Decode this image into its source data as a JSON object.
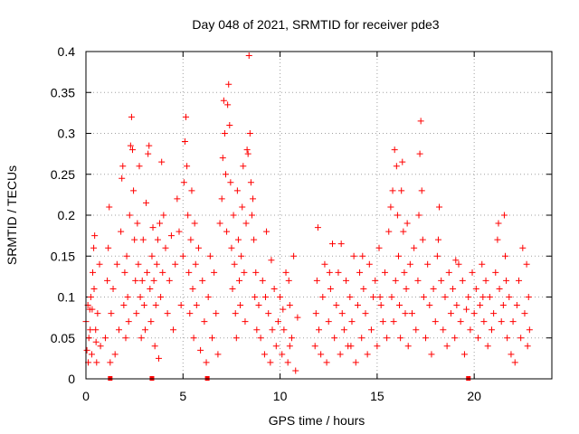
{
  "chart_data": {
    "type": "scatter",
    "title": "Day 048 of 2021, SRMTID for receiver pde3",
    "xlabel": "GPS time / hours",
    "ylabel": "SRMTID / TECUs",
    "xlim": [
      0,
      24
    ],
    "ylim": [
      0,
      0.4
    ],
    "grid": true,
    "marker": "+",
    "marker_color": "#ff0000",
    "x_ticks": [
      0,
      5,
      10,
      15,
      20
    ],
    "x_tick_labels": [
      "0",
      "5",
      "10",
      "15",
      "20"
    ],
    "y_ticks": [
      0,
      0.05,
      0.1,
      0.15,
      0.2,
      0.25,
      0.3,
      0.35,
      0.4
    ],
    "y_tick_labels": [
      "0",
      "0.05",
      "0.1",
      "0.15",
      "0.2",
      "0.25",
      "0.3",
      "0.35",
      "0.4"
    ],
    "series": [
      {
        "name": "SRMTID",
        "points": [
          [
            0.0,
            0.07
          ],
          [
            0.1,
            0.09
          ],
          [
            0.15,
            0.05
          ],
          [
            0.2,
            0.085
          ],
          [
            0.25,
            0.1
          ],
          [
            0.3,
            0.03
          ],
          [
            0.35,
            0.13
          ],
          [
            0.4,
            0.16
          ],
          [
            0.45,
            0.175
          ],
          [
            0.5,
            0.06
          ],
          [
            0.55,
            0.02
          ],
          [
            0.6,
            0.08
          ],
          [
            0.7,
            0.14
          ],
          [
            0.75,
            0.04
          ],
          [
            0.05,
            0.035
          ],
          [
            0.12,
            0.02
          ],
          [
            0.22,
            0.06
          ],
          [
            0.32,
            0.085
          ],
          [
            0.42,
            0.11
          ],
          [
            0.52,
            0.045
          ],
          [
            1.0,
            0.05
          ],
          [
            1.1,
            0.12
          ],
          [
            1.15,
            0.16
          ],
          [
            1.2,
            0.21
          ],
          [
            1.25,
            0.02
          ],
          [
            1.3,
            0.08
          ],
          [
            1.4,
            0.11
          ],
          [
            1.5,
            0.03
          ],
          [
            1.6,
            0.14
          ],
          [
            1.7,
            0.06
          ],
          [
            1.8,
            0.18
          ],
          [
            1.85,
            0.245
          ],
          [
            1.9,
            0.26
          ],
          [
            1.95,
            0.09
          ],
          [
            2.0,
            0.13
          ],
          [
            2.05,
            0.05
          ],
          [
            2.1,
            0.15
          ],
          [
            2.15,
            0.1
          ],
          [
            2.2,
            0.07
          ],
          [
            2.25,
            0.2
          ],
          [
            2.3,
            0.285
          ],
          [
            2.35,
            0.32
          ],
          [
            2.4,
            0.28
          ],
          [
            2.45,
            0.23
          ],
          [
            2.5,
            0.17
          ],
          [
            2.55,
            0.12
          ],
          [
            2.6,
            0.08
          ],
          [
            2.65,
            0.19
          ],
          [
            2.7,
            0.14
          ],
          [
            2.75,
            0.26
          ],
          [
            2.8,
            0.1
          ],
          [
            2.85,
            0.05
          ],
          [
            2.9,
            0.12
          ],
          [
            2.95,
            0.17
          ],
          [
            3.0,
            0.09
          ],
          [
            3.05,
            0.06
          ],
          [
            3.1,
            0.215
          ],
          [
            3.15,
            0.13
          ],
          [
            3.2,
            0.275
          ],
          [
            3.25,
            0.285
          ],
          [
            3.3,
            0.11
          ],
          [
            3.35,
            0.07
          ],
          [
            3.4,
            0.15
          ],
          [
            3.45,
            0.185
          ],
          [
            3.5,
            0.12
          ],
          [
            3.55,
            0.04
          ],
          [
            3.6,
            0.09
          ],
          [
            3.65,
            0.14
          ],
          [
            3.7,
            0.17
          ],
          [
            3.75,
            0.025
          ],
          [
            3.8,
            0.19
          ],
          [
            3.85,
            0.1
          ],
          [
            3.9,
            0.265
          ],
          [
            3.95,
            0.13
          ],
          [
            4.0,
            0.2
          ],
          [
            4.1,
            0.16
          ],
          [
            4.2,
            0.08
          ],
          [
            4.3,
            0.12
          ],
          [
            4.4,
            0.175
          ],
          [
            4.5,
            0.06
          ],
          [
            4.6,
            0.14
          ],
          [
            4.7,
            0.22
          ],
          [
            4.8,
            0.18
          ],
          [
            4.9,
            0.09
          ],
          [
            5.0,
            0.15
          ],
          [
            5.05,
            0.24
          ],
          [
            5.1,
            0.29
          ],
          [
            5.15,
            0.32
          ],
          [
            5.2,
            0.26
          ],
          [
            5.25,
            0.2
          ],
          [
            5.3,
            0.13
          ],
          [
            5.35,
            0.08
          ],
          [
            5.4,
            0.17
          ],
          [
            5.45,
            0.23
          ],
          [
            5.5,
            0.11
          ],
          [
            5.55,
            0.05
          ],
          [
            5.6,
            0.19
          ],
          [
            5.65,
            0.14
          ],
          [
            5.7,
            0.09
          ],
          [
            5.8,
            0.16
          ],
          [
            5.9,
            0.035
          ],
          [
            6.0,
            0.12
          ],
          [
            6.1,
            0.07
          ],
          [
            6.2,
            0.02
          ],
          [
            6.3,
            0.1
          ],
          [
            6.4,
            0.15
          ],
          [
            6.5,
            0.05
          ],
          [
            6.6,
            0.13
          ],
          [
            6.7,
            0.08
          ],
          [
            6.8,
            0.03
          ],
          [
            6.9,
            0.19
          ],
          [
            7.0,
            0.22
          ],
          [
            7.05,
            0.27
          ],
          [
            7.1,
            0.34
          ],
          [
            7.15,
            0.3
          ],
          [
            7.2,
            0.25
          ],
          [
            7.25,
            0.18
          ],
          [
            7.3,
            0.335
          ],
          [
            7.35,
            0.36
          ],
          [
            7.4,
            0.31
          ],
          [
            7.45,
            0.24
          ],
          [
            7.5,
            0.16
          ],
          [
            7.55,
            0.11
          ],
          [
            7.6,
            0.2
          ],
          [
            7.65,
            0.14
          ],
          [
            7.7,
            0.08
          ],
          [
            7.75,
            0.05
          ],
          [
            7.8,
            0.23
          ],
          [
            7.85,
            0.17
          ],
          [
            7.9,
            0.12
          ],
          [
            7.95,
            0.09
          ],
          [
            8.0,
            0.15
          ],
          [
            8.05,
            0.21
          ],
          [
            8.1,
            0.26
          ],
          [
            8.15,
            0.13
          ],
          [
            8.2,
            0.07
          ],
          [
            8.25,
            0.19
          ],
          [
            8.3,
            0.28
          ],
          [
            8.35,
            0.275
          ],
          [
            8.4,
            0.395
          ],
          [
            8.45,
            0.3
          ],
          [
            8.5,
            0.24
          ],
          [
            8.55,
            0.2
          ],
          [
            8.6,
            0.22
          ],
          [
            8.65,
            0.17
          ],
          [
            8.7,
            0.1
          ],
          [
            8.75,
            0.13
          ],
          [
            8.8,
            0.06
          ],
          [
            8.9,
            0.09
          ],
          [
            9.0,
            0.05
          ],
          [
            9.1,
            0.12
          ],
          [
            9.2,
            0.03
          ],
          [
            9.3,
            0.18
          ],
          [
            9.4,
            0.08
          ],
          [
            9.5,
            0.02
          ],
          [
            9.6,
            0.06
          ],
          [
            9.7,
            0.11
          ],
          [
            9.8,
            0.04
          ],
          [
            9.9,
            0.07
          ],
          [
            10.0,
            0.1
          ],
          [
            10.1,
            0.03
          ],
          [
            10.2,
            0.06
          ],
          [
            10.3,
            0.13
          ],
          [
            10.4,
            0.02
          ],
          [
            10.5,
            0.09
          ],
          [
            10.6,
            0.05
          ],
          [
            10.7,
            0.15
          ],
          [
            10.8,
            0.01
          ],
          [
            10.9,
            0.075
          ],
          [
            10.5,
            0.04
          ],
          [
            9.55,
            0.145
          ],
          [
            9.25,
            0.1
          ],
          [
            10.15,
            0.085
          ],
          [
            10.45,
            0.12
          ],
          [
            11.8,
            0.04
          ],
          [
            11.85,
            0.08
          ],
          [
            11.9,
            0.12
          ],
          [
            11.95,
            0.185
          ],
          [
            12.0,
            0.06
          ],
          [
            12.1,
            0.03
          ],
          [
            12.2,
            0.1
          ],
          [
            12.3,
            0.14
          ],
          [
            12.4,
            0.02
          ],
          [
            12.5,
            0.07
          ],
          [
            12.6,
            0.11
          ],
          [
            12.7,
            0.165
          ],
          [
            12.8,
            0.05
          ],
          [
            12.9,
            0.09
          ],
          [
            13.0,
            0.13
          ],
          [
            13.1,
            0.03
          ],
          [
            13.2,
            0.08
          ],
          [
            13.3,
            0.06
          ],
          [
            13.4,
            0.12
          ],
          [
            13.5,
            0.04
          ],
          [
            13.6,
            0.1
          ],
          [
            13.7,
            0.07
          ],
          [
            13.8,
            0.15
          ],
          [
            13.9,
            0.02
          ],
          [
            14.0,
            0.09
          ],
          [
            14.1,
            0.13
          ],
          [
            14.2,
            0.05
          ],
          [
            14.3,
            0.11
          ],
          [
            14.4,
            0.08
          ],
          [
            14.5,
            0.03
          ],
          [
            14.6,
            0.14
          ],
          [
            14.7,
            0.06
          ],
          [
            14.8,
            0.1
          ],
          [
            14.9,
            0.12
          ],
          [
            15.0,
            0.04
          ],
          [
            15.1,
            0.16
          ],
          [
            15.2,
            0.09
          ],
          [
            15.3,
            0.07
          ],
          [
            15.4,
            0.13
          ],
          [
            15.5,
            0.05
          ],
          [
            15.6,
            0.18
          ],
          [
            15.7,
            0.21
          ],
          [
            15.75,
            0.1
          ],
          [
            15.8,
            0.23
          ],
          [
            15.85,
            0.07
          ],
          [
            15.9,
            0.28
          ],
          [
            15.95,
            0.12
          ],
          [
            16.0,
            0.26
          ],
          [
            16.05,
            0.2
          ],
          [
            16.1,
            0.15
          ],
          [
            16.15,
            0.09
          ],
          [
            16.2,
            0.05
          ],
          [
            16.25,
            0.23
          ],
          [
            16.3,
            0.265
          ],
          [
            16.35,
            0.18
          ],
          [
            16.4,
            0.13
          ],
          [
            16.45,
            0.08
          ],
          [
            16.5,
            0.11
          ],
          [
            16.6,
            0.04
          ],
          [
            16.7,
            0.14
          ],
          [
            16.8,
            0.08
          ],
          [
            16.9,
            0.16
          ],
          [
            17.0,
            0.06
          ],
          [
            17.1,
            0.12
          ],
          [
            17.15,
            0.2
          ],
          [
            17.2,
            0.275
          ],
          [
            17.25,
            0.315
          ],
          [
            17.3,
            0.23
          ],
          [
            17.35,
            0.17
          ],
          [
            17.4,
            0.1
          ],
          [
            17.5,
            0.05
          ],
          [
            17.6,
            0.14
          ],
          [
            17.7,
            0.09
          ],
          [
            17.8,
            0.03
          ],
          [
            17.9,
            0.11
          ],
          [
            18.0,
            0.07
          ],
          [
            18.1,
            0.15
          ],
          [
            18.2,
            0.21
          ],
          [
            18.3,
            0.12
          ],
          [
            18.4,
            0.06
          ],
          [
            18.5,
            0.1
          ],
          [
            18.6,
            0.04
          ],
          [
            18.7,
            0.13
          ],
          [
            18.8,
            0.08
          ],
          [
            18.9,
            0.11
          ],
          [
            19.0,
            0.05
          ],
          [
            19.1,
            0.09
          ],
          [
            19.2,
            0.14
          ],
          [
            19.3,
            0.07
          ],
          [
            19.4,
            0.12
          ],
          [
            19.5,
            0.03
          ],
          [
            19.6,
            0.085
          ],
          [
            19.7,
            0.1
          ],
          [
            19.8,
            0.06
          ],
          [
            19.9,
            0.13
          ],
          [
            20.0,
            0.08
          ],
          [
            20.1,
            0.11
          ],
          [
            20.2,
            0.05
          ],
          [
            20.3,
            0.09
          ],
          [
            20.4,
            0.14
          ],
          [
            20.5,
            0.07
          ],
          [
            20.6,
            0.12
          ],
          [
            20.7,
            0.04
          ],
          [
            20.8,
            0.1
          ],
          [
            20.9,
            0.06
          ],
          [
            21.0,
            0.08
          ],
          [
            21.1,
            0.13
          ],
          [
            21.2,
            0.17
          ],
          [
            21.3,
            0.11
          ],
          [
            21.4,
            0.07
          ],
          [
            21.5,
            0.09
          ],
          [
            21.55,
            0.2
          ],
          [
            21.6,
            0.15
          ],
          [
            21.65,
            0.12
          ],
          [
            21.7,
            0.05
          ],
          [
            21.8,
            0.1
          ],
          [
            21.9,
            0.03
          ],
          [
            22.0,
            0.07
          ],
          [
            22.1,
            0.02
          ],
          [
            22.2,
            0.09
          ],
          [
            22.3,
            0.12
          ],
          [
            22.4,
            0.05
          ],
          [
            22.5,
            0.16
          ],
          [
            22.6,
            0.08
          ],
          [
            22.7,
            0.14
          ],
          [
            22.75,
            0.04
          ],
          [
            22.8,
            0.1
          ],
          [
            22.85,
            0.06
          ],
          [
            18.15,
            0.17
          ],
          [
            19.05,
            0.145
          ],
          [
            20.45,
            0.1
          ],
          [
            21.25,
            0.19
          ],
          [
            16.55,
            0.19
          ],
          [
            14.25,
            0.15
          ],
          [
            13.15,
            0.165
          ],
          [
            12.55,
            0.13
          ],
          [
            15.15,
            0.1
          ],
          [
            13.65,
            0.04
          ]
        ]
      }
    ],
    "marks_on_x_axis": [
      1.25,
      3.4,
      6.25,
      19.7
    ]
  }
}
